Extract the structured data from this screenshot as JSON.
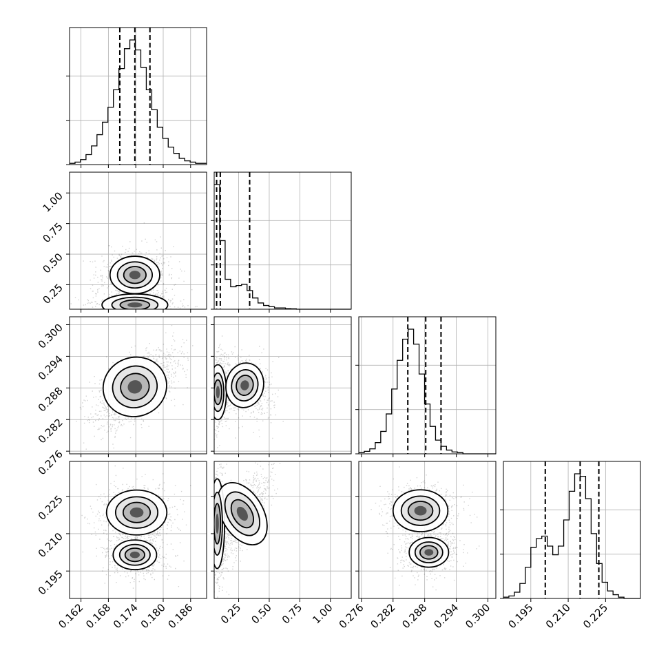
{
  "chart_data": {
    "type": "scatter",
    "title": "",
    "parameters": [
      {
        "id": "p0",
        "range": [
          0.1595,
          0.1895
        ],
        "ticks": [
          0.162,
          0.168,
          0.174,
          0.18,
          0.186
        ],
        "tick_labels": [
          "0.162",
          "0.168",
          "0.174",
          "0.180",
          "0.186"
        ],
        "quantiles": [
          0.1705,
          0.1738,
          0.1771
        ],
        "hist": [
          1,
          2,
          4,
          8,
          15,
          24,
          34,
          46,
          60,
          77,
          93,
          100,
          92,
          78,
          60,
          44,
          30,
          21,
          14,
          9,
          5,
          3,
          2,
          1,
          1
        ]
      },
      {
        "id": "p1",
        "range": [
          0.05,
          1.17
        ],
        "ticks": [
          0.25,
          0.5,
          0.75,
          1.0
        ],
        "tick_labels": [
          "0.25",
          "0.50",
          "0.75",
          "1.00"
        ],
        "quantiles": [
          0.07,
          0.1,
          0.34
        ],
        "hist": [
          100,
          55,
          24,
          18,
          19,
          20,
          15,
          9,
          5,
          3,
          2,
          1,
          1,
          0.5,
          0.3,
          0,
          0,
          0,
          0,
          0,
          0,
          0,
          0,
          0,
          0
        ]
      },
      {
        "id": "p2",
        "range": [
          0.2755,
          0.3015
        ],
        "ticks": [
          0.276,
          0.282,
          0.288,
          0.294,
          0.3
        ],
        "tick_labels": [
          "0.276",
          "0.282",
          "0.288",
          "0.294",
          "0.300"
        ],
        "quantiles": [
          0.2848,
          0.2882,
          0.2911
        ],
        "hist": [
          1,
          2,
          4,
          9,
          18,
          32,
          52,
          75,
          92,
          100,
          88,
          64,
          40,
          22,
          11,
          6,
          3,
          1.5,
          1,
          0,
          0,
          0,
          0,
          0,
          0
        ]
      },
      {
        "id": "p3",
        "range": [
          0.184,
          0.239
        ],
        "ticks": [
          0.195,
          0.21,
          0.225
        ],
        "tick_labels": [
          "0.195",
          "0.210",
          "0.225"
        ],
        "quantiles": [
          0.2008,
          0.2148,
          0.2223
        ],
        "hist": [
          1,
          2,
          5,
          12,
          25,
          41,
          48,
          50,
          42,
          35,
          42,
          63,
          86,
          100,
          98,
          80,
          52,
          28,
          13,
          6,
          3,
          1,
          0,
          0,
          0
        ]
      }
    ],
    "pairs": [
      {
        "x": "p0",
        "y": "p1",
        "note": "bimodal in p1: dense mode near 0.09, secondary mode near 0.33 at p0≈0.174"
      },
      {
        "x": "p0",
        "y": "p2",
        "note": "positive correlation, peak at (0.174, 0.289)"
      },
      {
        "x": "p1",
        "y": "p2",
        "note": "peak near p1≈0.07, p2≈0.287; lobe toward p1≈0.25"
      },
      {
        "x": "p0",
        "y": "p3",
        "note": "two modes: (0.174, 0.218) and (0.174, 0.202)"
      },
      {
        "x": "p1",
        "y": "p3",
        "note": "V shape: low-p1 branch and branch rising with p1"
      },
      {
        "x": "p2",
        "y": "p3",
        "note": "two modes: (0.287, 0.219) and (0.289, 0.203)"
      }
    ],
    "grid": true,
    "legend": "none"
  }
}
